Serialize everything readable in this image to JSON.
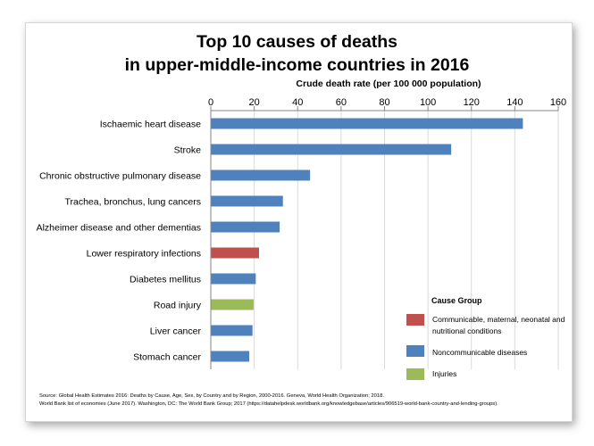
{
  "chart_data": {
    "type": "bar",
    "orientation": "horizontal",
    "title_line1": "Top 10 causes of deaths",
    "title_line2": "in upper-middle-income countries in 2016",
    "xlabel": "Crude death rate (per 100 000 population)",
    "xlim": [
      0,
      160
    ],
    "xticks": [
      "0",
      "20",
      "40",
      "60",
      "80",
      "100",
      "120",
      "140",
      "160"
    ],
    "grid": true,
    "legend_position": "bottom-right",
    "categories": [
      "Ischaemic heart disease",
      "Stroke",
      "Chronic obstructive pulmonary disease",
      "Trachea, bronchus, lung cancers",
      "Alzheimer disease and other dementias",
      "Lower respiratory infections",
      "Diabetes mellitus",
      "Road injury",
      "Liver cancer",
      "Stomach cancer"
    ],
    "values": [
      143.5,
      110.5,
      45.5,
      33,
      31.5,
      22,
      20.5,
      19.5,
      19,
      17.5
    ],
    "groups": [
      "Noncommunicable diseases",
      "Noncommunicable diseases",
      "Noncommunicable diseases",
      "Noncommunicable diseases",
      "Noncommunicable diseases",
      "Communicable, maternal, neonatal and nutritional conditions",
      "Noncommunicable diseases",
      "Injuries",
      "Noncommunicable diseases",
      "Noncommunicable diseases"
    ],
    "legend_title": "Cause Group",
    "legend": [
      {
        "name": "Communicable, maternal, neonatal and nutritional conditions",
        "color": "#c0504d"
      },
      {
        "name": "Noncommunicable diseases",
        "color": "#4f81bd"
      },
      {
        "name": "Injuries",
        "color": "#9bbb59"
      }
    ],
    "group_colors": {
      "Communicable, maternal, neonatal and nutritional conditions": "#c0504d",
      "Noncommunicable diseases": "#4f81bd",
      "Injuries": "#9bbb59"
    },
    "source_line1": "Source: Global Health Estimates 2016: Deaths by Cause, Age, Sex, by Country and by Region, 2000-2016. Geneva, World Health Organization; 2018.",
    "source_line2": "World Bank list of economies (June 2017). Washington, DC: The World Bank Group; 2017 (https://datahelpdesk.worldbank.org/knowledgebase/articles/906519-world-bank-country-and-lending-groups)."
  }
}
